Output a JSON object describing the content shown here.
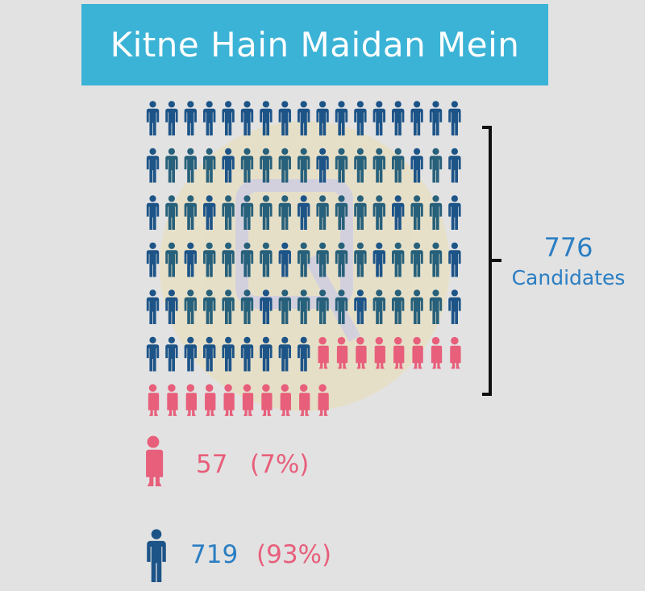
{
  "title": "Kitne Hain Maidan Mein",
  "total": {
    "count": "776",
    "label": "Candidates"
  },
  "legend": {
    "female": {
      "count": "57",
      "percent": "(7%)"
    },
    "male": {
      "count": "719",
      "percent": "(93%)"
    }
  },
  "colors": {
    "background": "#e2e2e2",
    "title_bg": "#3bb3d6",
    "male_dark": "#1d5488",
    "male_teal": "#27607a",
    "female": "#e75f7b",
    "accent_text": "#2b7ec3"
  },
  "chart_data": {
    "type": "pictogram",
    "categories": [
      "Female",
      "Male"
    ],
    "values": [
      57,
      719
    ],
    "percentages": [
      7,
      93
    ],
    "total": 776,
    "icons_shown": {
      "male": 94,
      "female": 18
    }
  }
}
